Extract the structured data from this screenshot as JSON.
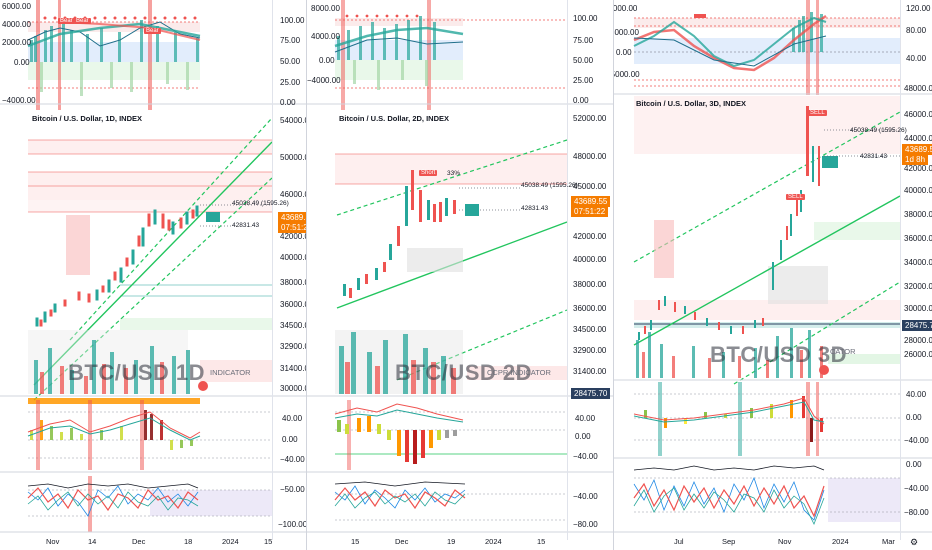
{
  "colors": {
    "up": "#26a69a",
    "down": "#ef5350",
    "green_line": "#22c55e",
    "red_band": "#f44336",
    "blue_band": "#2962ff",
    "price_tag": "#f57c00",
    "dark_tag": "#2a3f5f"
  },
  "panel1": {
    "legend": "Bitcoin / U.S. Dollar, 1D, INDEX",
    "watermark": "BTC/USD 1D",
    "indicator_text": "INDICATOR",
    "top_axis_left": [
      "6000.00",
      "4000.00",
      "2000.00",
      "0.00",
      "−4000.00"
    ],
    "top_axis_right": [
      "100.00",
      "75.00",
      "50.00",
      "25.00",
      "0.00"
    ],
    "price_axis": [
      "54000.00",
      "50000.00",
      "46000.00",
      "42000.00",
      "40000.00",
      "38000.00",
      "36000.00",
      "34500.00",
      "32900.00",
      "31400.00",
      "30000.00"
    ],
    "price_tag": "43689.55",
    "price_tag_time": "07:51:22",
    "level1": "45038.49 (1595.26)",
    "level2": "42831.43",
    "osc_axis": [
      "40.00",
      "0.00",
      "−40.00"
    ],
    "bottom_axis": [
      "−50.00",
      "−100.00"
    ],
    "time_axis": [
      "Nov",
      "14",
      "Dec",
      "18",
      "2024",
      "15"
    ],
    "signal_labels": [
      "Bear",
      "Bear",
      "Bear"
    ]
  },
  "panel2": {
    "legend": "Bitcoin / U.S. Dollar, 2D, INDEX",
    "watermark": "BTC/USD 2D",
    "indicator_text": "CCPR INDICATOR",
    "top_axis_left": [
      "8000.00",
      "4000.00",
      "0.00",
      "−4000.00"
    ],
    "top_axis_right": [
      "100.00",
      "75.00",
      "50.00",
      "25.00",
      "0.00"
    ],
    "price_axis": [
      "52000.00",
      "48000.00",
      "45000.00",
      "42000.00",
      "40000.00",
      "38000.00",
      "36000.00",
      "34500.00",
      "32900.00",
      "31400.00",
      "29900.00"
    ],
    "price_tag": "43689.55",
    "price_tag_time": "07:51:22",
    "dark_tag": "28475.70",
    "level1": "45038.49 (1595.26)",
    "level2": "42831.43",
    "osc_axis": [
      "40.00",
      "0.00",
      "−40.00"
    ],
    "bottom_axis": [
      "−40.00",
      "−80.00"
    ],
    "time_axis": [
      "15",
      "Dec",
      "19",
      "2024",
      "15"
    ],
    "signal_labels": [
      "Short",
      "33%"
    ]
  },
  "panel3": {
    "legend": "Bitcoin / U.S. Dollar, 3D, INDEX",
    "watermark": "BTC/USD 3D",
    "indicator_text": "CATOR",
    "top_axis_left": [
      "10000.00",
      "5000.00",
      "0.00",
      "−5000.00"
    ],
    "top_axis_right": [
      "120.00",
      "80.00",
      "40.00"
    ],
    "price_axis": [
      "48000.00",
      "46000.00",
      "44000.00",
      "42000.00",
      "40000.00",
      "38000.00",
      "36000.00",
      "34000.00",
      "32000.00",
      "30000.00",
      "28000.00",
      "26000.00"
    ],
    "price_tag": "43689.55",
    "price_tag_time": "1d 8h",
    "dark_tag": "28475.70",
    "level1": "45038.49 (1595.26)",
    "level2": "42831.43",
    "osc_axis": [
      "40.00",
      "0.00",
      "−40.00"
    ],
    "bottom_axis": [
      "0.00",
      "−40.00",
      "−80.00"
    ],
    "time_axis": [
      "Jul",
      "Sep",
      "Nov",
      "2024",
      "Mar"
    ],
    "signal_labels": [
      "SELL",
      "SELL",
      "SELL"
    ]
  }
}
